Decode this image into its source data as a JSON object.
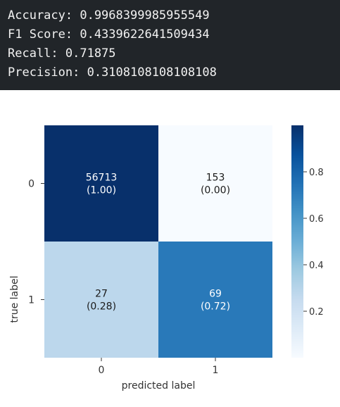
{
  "console": {
    "lines": [
      "Accuracy: 0.9968399985955549",
      "F1 Score: 0.4339622641509434",
      "Recall: 0.71875",
      "Precision: 0.3108108108108108"
    ]
  },
  "chart_data": {
    "type": "heatmap",
    "title": "",
    "xlabel": "predicted label",
    "ylabel": "true label",
    "x_categories": [
      "0",
      "1"
    ],
    "y_categories": [
      "0",
      "1"
    ],
    "matrix": [
      [
        56713,
        153
      ],
      [
        27,
        69
      ]
    ],
    "normalized": [
      [
        1.0,
        0.0
      ],
      [
        0.28,
        0.72
      ]
    ],
    "cell_labels": [
      [
        "56713",
        "153"
      ],
      [
        "27",
        "69"
      ]
    ],
    "cell_sublabels": [
      [
        "(1.00)",
        "(0.00)"
      ],
      [
        "(0.28)",
        "(0.72)"
      ]
    ],
    "colorbar": {
      "colormap": "Blues",
      "range": [
        0.0,
        1.0
      ],
      "ticks": [
        0.2,
        0.4,
        0.6,
        0.8
      ],
      "tick_labels": [
        "0.2",
        "0.4",
        "0.6",
        "0.8"
      ]
    },
    "grid": false,
    "legend": "none"
  }
}
